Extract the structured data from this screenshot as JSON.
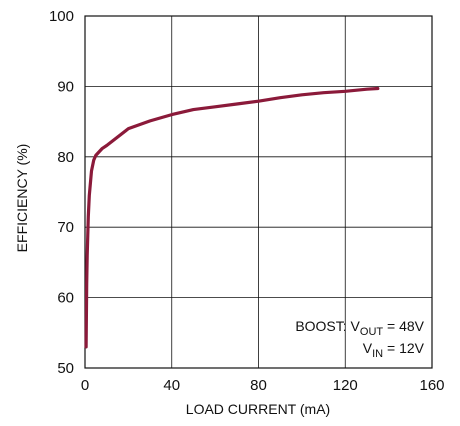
{
  "chart_data": {
    "type": "line",
    "title": "",
    "xlabel": "LOAD CURRENT (mA)",
    "ylabel": "EFFICIENCY (%)",
    "xlim": [
      0,
      160
    ],
    "ylim": [
      50,
      100
    ],
    "xticks": [
      0,
      40,
      80,
      120,
      160
    ],
    "yticks": [
      50,
      60,
      70,
      80,
      90,
      100
    ],
    "grid": true,
    "series": [
      {
        "color": "#8b1a3a",
        "x": [
          0.5,
          0.8,
          1,
          1.5,
          2,
          3,
          4,
          5,
          8,
          10,
          20,
          30,
          40,
          50,
          60,
          70,
          80,
          90,
          100,
          110,
          120,
          130,
          135
        ],
        "y": [
          53,
          62,
          66,
          71.5,
          74.5,
          78,
          79.5,
          80.2,
          81.2,
          81.6,
          84,
          85.1,
          86,
          86.7,
          87.1,
          87.5,
          87.9,
          88.4,
          88.8,
          89.1,
          89.3,
          89.6,
          89.7
        ]
      }
    ],
    "annotation": {
      "line1": "BOOST: V",
      "line1_sub": "OUT",
      "line1_rest": " = 48V",
      "line2": "V",
      "line2_sub": "IN",
      "line2_rest": " = 12V"
    }
  }
}
